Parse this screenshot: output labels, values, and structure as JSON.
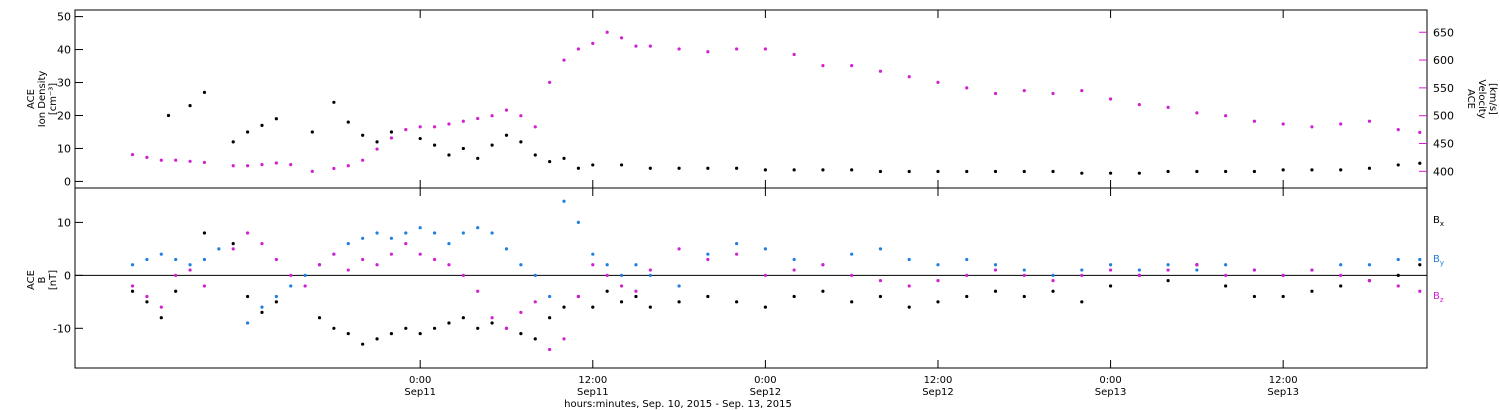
{
  "chart_data": [
    {
      "type": "scatter",
      "panel": "top",
      "ylabel_left": [
        "ACE",
        "Ion Density",
        "[cm⁻³]"
      ],
      "ylabel_right": [
        "ACE",
        "Velocity",
        "[km/s]"
      ],
      "y_left_ticks": [
        "0",
        "10",
        "20",
        "30",
        "40",
        "50"
      ],
      "y_left_range": [
        -2,
        52
      ],
      "y_right_ticks": [
        "400",
        "450",
        "500",
        "550",
        "600",
        "650"
      ],
      "y_right_range": [
        370,
        690
      ],
      "series": [
        {
          "axis": "left",
          "color": "#000000",
          "x": [
            -17.5,
            -16,
            -15,
            -13,
            -12,
            -11,
            -10,
            -7.5,
            -6,
            -5,
            -4,
            -3,
            -2,
            0,
            1,
            2,
            3,
            4,
            5,
            6,
            7,
            8,
            9,
            10,
            11,
            12,
            14,
            16,
            18,
            20,
            22,
            24,
            26,
            28,
            30,
            32,
            34,
            36,
            38,
            40,
            42,
            44,
            46,
            48,
            50,
            52,
            54,
            56,
            58,
            60,
            62,
            64,
            66,
            68,
            69.5
          ],
          "values": [
            20,
            23,
            27,
            12,
            15,
            17,
            19,
            15,
            24,
            18,
            14,
            12,
            15,
            13,
            11,
            8,
            10,
            7,
            11,
            14,
            12,
            8,
            6,
            7,
            4,
            5,
            5,
            4,
            4,
            4,
            4,
            3.5,
            3.5,
            3.5,
            3.5,
            3,
            3,
            3,
            3,
            3,
            3,
            3,
            2.5,
            2.5,
            2.5,
            3,
            3,
            3,
            3,
            3.5,
            3.5,
            3.5,
            4,
            5,
            5.5
          ]
        },
        {
          "axis": "right",
          "color": "#d21fd2",
          "x": [
            -20,
            -19,
            -18,
            -17,
            -16,
            -15,
            -13,
            -12,
            -11,
            -10,
            -9,
            -7.5,
            -6,
            -5,
            -4,
            -3,
            -2,
            -1,
            0,
            1,
            2,
            3,
            4,
            5,
            6,
            7,
            8,
            9,
            10,
            11,
            12,
            13,
            14,
            15,
            16,
            18,
            20,
            22,
            24,
            26,
            28,
            30,
            32,
            34,
            36,
            38,
            40,
            42,
            44,
            46,
            48,
            50,
            52,
            54,
            56,
            58,
            60,
            62,
            64,
            66,
            68,
            69.5
          ],
          "values": [
            430,
            425,
            420,
            420,
            418,
            416,
            410,
            410,
            412,
            415,
            412,
            400,
            405,
            410,
            420,
            440,
            460,
            475,
            480,
            480,
            485,
            490,
            495,
            500,
            510,
            500,
            480,
            560,
            600,
            620,
            630,
            650,
            640,
            625,
            625,
            620,
            615,
            620,
            620,
            610,
            590,
            590,
            580,
            570,
            560,
            550,
            540,
            545,
            540,
            545,
            530,
            520,
            515,
            505,
            500,
            490,
            485,
            480,
            485,
            490,
            475,
            470
          ]
        }
      ]
    },
    {
      "type": "scatter",
      "panel": "bottom",
      "ylabel_left": [
        "ACE",
        "B",
        "[nT]"
      ],
      "y_left_ticks": [
        "-10",
        "0",
        "10"
      ],
      "y_left_range": [
        -17.5,
        16.5
      ],
      "zero_line": true,
      "legend_position": "right",
      "series": [
        {
          "name": "Bx",
          "color": "#000000",
          "x": [
            -20,
            -19,
            -18,
            -17,
            -15,
            -13,
            -12,
            -11,
            -10,
            -7,
            -6,
            -5,
            -4,
            -3,
            -2,
            -1,
            0,
            1,
            2,
            3,
            4,
            5,
            6,
            7,
            8,
            9,
            10,
            11,
            12,
            13,
            14,
            15,
            16,
            18,
            20,
            22,
            24,
            26,
            28,
            30,
            32,
            34,
            36,
            38,
            40,
            42,
            44,
            46,
            48,
            50,
            52,
            54,
            56,
            58,
            60,
            62,
            64,
            66,
            68,
            69.5
          ],
          "values": [
            -3,
            -5,
            -8,
            -3,
            8,
            6,
            -4,
            -7,
            -5,
            -8,
            -10,
            -11,
            -13,
            -12,
            -11,
            -10,
            -11,
            -10,
            -9,
            -8,
            -10,
            -9,
            -10,
            -11,
            -12,
            -8,
            -6,
            -4,
            -6,
            -3,
            -5,
            -4,
            -6,
            -5,
            -4,
            -5,
            -6,
            -4,
            -3,
            -5,
            -4,
            -6,
            -5,
            -4,
            -3,
            -4,
            -3,
            -5,
            -2,
            0,
            -1,
            2,
            -2,
            -4,
            -4,
            -3,
            -2,
            -1,
            0,
            2
          ]
        },
        {
          "name": "By",
          "color": "#1f7fe0",
          "x": [
            -20,
            -19,
            -18,
            -17,
            -16,
            -15,
            -14,
            -12,
            -11,
            -10,
            -9,
            -8,
            -7,
            -6,
            -5,
            -4,
            -3,
            -2,
            -1,
            0,
            1,
            2,
            3,
            4,
            5,
            6,
            7,
            8,
            9,
            10,
            11,
            12,
            13,
            14,
            15,
            16,
            18,
            20,
            22,
            24,
            26,
            28,
            30,
            32,
            34,
            36,
            38,
            40,
            42,
            44,
            46,
            48,
            50,
            52,
            54,
            56,
            58,
            60,
            62,
            64,
            66,
            68,
            69.5
          ],
          "values": [
            2,
            3,
            4,
            3,
            2,
            3,
            5,
            -9,
            -6,
            -4,
            -2,
            0,
            2,
            4,
            6,
            7,
            8,
            7,
            8,
            9,
            8,
            6,
            8,
            9,
            8,
            5,
            2,
            0,
            -4,
            14,
            10,
            4,
            2,
            0,
            2,
            0,
            -2,
            4,
            6,
            5,
            3,
            2,
            4,
            5,
            3,
            2,
            3,
            2,
            1,
            0,
            1,
            2,
            1,
            2,
            1,
            2,
            1,
            0,
            1,
            2,
            2,
            3,
            3
          ]
        },
        {
          "name": "Bz",
          "color": "#d21fd2",
          "x": [
            -20,
            -19,
            -18,
            -17,
            -16,
            -15,
            -13,
            -12,
            -11,
            -10,
            -9,
            -8,
            -7,
            -6,
            -5,
            -4,
            -3,
            -2,
            -1,
            0,
            1,
            2,
            3,
            4,
            5,
            6,
            7,
            8,
            9,
            10,
            11,
            12,
            13,
            14,
            15,
            16,
            18,
            20,
            22,
            24,
            26,
            28,
            30,
            32,
            34,
            36,
            38,
            40,
            42,
            44,
            46,
            48,
            50,
            52,
            54,
            56,
            58,
            60,
            62,
            64,
            66,
            68,
            69.5
          ],
          "values": [
            -2,
            -4,
            -6,
            0,
            1,
            -2,
            5,
            8,
            6,
            3,
            0,
            -2,
            2,
            4,
            1,
            3,
            2,
            4,
            6,
            4,
            3,
            2,
            0,
            -3,
            -8,
            -10,
            -7,
            -5,
            -14,
            -12,
            -4,
            2,
            0,
            -2,
            -3,
            1,
            5,
            3,
            4,
            0,
            1,
            2,
            0,
            -1,
            -2,
            -1,
            0,
            1,
            0,
            -1,
            0,
            1,
            0,
            1,
            2,
            0,
            1,
            0,
            1,
            0,
            -1,
            -2,
            -3
          ]
        }
      ]
    }
  ],
  "x_axis": {
    "range": [
      -24,
      70
    ],
    "tick_values": [
      0,
      12,
      24,
      36,
      48,
      60
    ],
    "tick_labels": [
      {
        "time": "0:00",
        "date": "Sep11"
      },
      {
        "time": "12:00",
        "date": "Sep11"
      },
      {
        "time": "0:00",
        "date": "Sep12"
      },
      {
        "time": "12:00",
        "date": "Sep12"
      },
      {
        "time": "0:00",
        "date": "Sep13"
      },
      {
        "time": "12:00",
        "date": "Sep13"
      }
    ],
    "xlabel": "hours:minutes, Sep. 10, 2015 - Sep. 13, 2015"
  },
  "legend": {
    "entries": [
      {
        "label": "B",
        "sub": "x",
        "color": "#000000"
      },
      {
        "label": "B",
        "sub": "y",
        "color": "#1f7fe0"
      },
      {
        "label": "B",
        "sub": "z",
        "color": "#d21fd2"
      }
    ]
  }
}
